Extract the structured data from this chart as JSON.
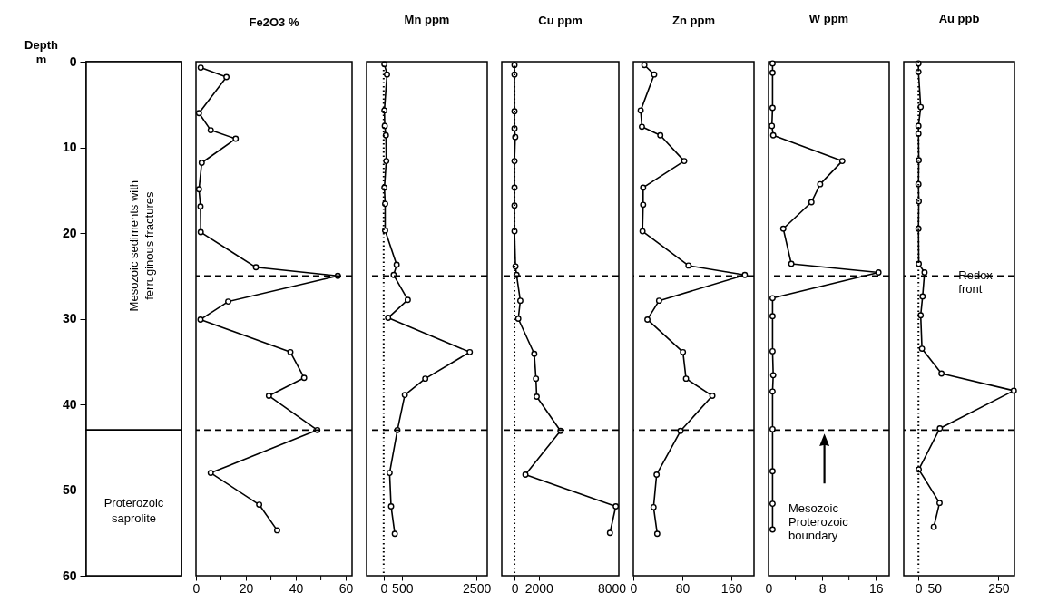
{
  "chart_data": [
    {
      "type": "bar",
      "stacked": true,
      "categories": [
        null
      ],
      "ylabel": "Depth\nm",
      "ylim": [
        60,
        0
      ],
      "yticks": [
        0,
        10,
        20,
        30,
        40,
        50,
        60
      ],
      "tick_labels": "y",
      "series": [
        {
          "name": "Mesozoic sediments with\nferruginous fractures",
          "color": "#ffffff",
          "values": [
            43
          ]
        },
        {
          "name": "Proterozoic\nsaprolite",
          "color": "#ffffff",
          "values": [
            17
          ]
        }
      ]
    },
    {
      "type": "line",
      "title": "Fe2O3 %",
      "xlim": [
        0,
        62.5
      ],
      "xticks": [
        0,
        {
          "value": 10,
          "label": null
        },
        20,
        {
          "value": 30,
          "label": null
        },
        40,
        {
          "value": 50,
          "label": null
        },
        60
      ],
      "ylim": [
        60,
        0
      ],
      "tick_labels": "x",
      "marker": "circle",
      "series": [
        {
          "color": "#000000",
          "x": [
            1.9,
            12.2,
            1.2,
            5.9,
            15.9,
            2.3,
            1.2,
            1.8,
            1.9,
            24,
            56.8,
            12.9,
            1.8,
            37.8,
            43.3,
            29.2,
            48.6,
            5.9,
            25.3,
            32.5
          ],
          "values": [
            0.7,
            1.8,
            6,
            8,
            9,
            11.8,
            14.9,
            16.9,
            19.9,
            24,
            25,
            28,
            30.1,
            33.9,
            36.9,
            39,
            43,
            48,
            51.7,
            54.7
          ]
        }
      ],
      "ref_lines": [
        {
          "axis": "y",
          "value": 25,
          "line_style": "dashed"
        },
        {
          "axis": "y",
          "value": 43,
          "line_style": "dashed"
        }
      ]
    },
    {
      "type": "line",
      "title": "Mn ppm",
      "xlim": [
        -460,
        2790
      ],
      "xticks": [
        0,
        500,
        2500
      ],
      "ylim": [
        60,
        0
      ],
      "tick_labels": "x",
      "marker": "circle",
      "series": [
        {
          "color": "#000000",
          "x": [
            20,
            90,
            20,
            30,
            60,
            70,
            20,
            40,
            40,
            350,
            270,
            650,
            120,
            2320,
            1120,
            570,
            370,
            160,
            200,
            300
          ],
          "values": [
            0.3,
            1.5,
            5.7,
            7.5,
            8.6,
            11.6,
            14.7,
            16.6,
            19.7,
            23.7,
            24.9,
            27.8,
            29.9,
            33.9,
            37,
            38.9,
            43,
            48,
            51.9,
            55.1
          ]
        }
      ],
      "ref_lines": [
        {
          "axis": "y",
          "value": 25,
          "line_style": "dashed"
        },
        {
          "axis": "y",
          "value": 43,
          "line_style": "dashed"
        },
        {
          "axis": "x",
          "value": 0,
          "line_style": "dotted"
        }
      ]
    },
    {
      "type": "line",
      "title": "Cu ppm",
      "xlim": [
        -1050,
        8600
      ],
      "xticks": [
        0,
        2000,
        8000
      ],
      "ylim": [
        60,
        0
      ],
      "tick_labels": "x",
      "marker": "circle",
      "series": [
        {
          "color": "#000000",
          "x": [
            0,
            0,
            0,
            0,
            60,
            0,
            0,
            0,
            0,
            80,
            170,
            480,
            310,
            1630,
            1770,
            1830,
            3790,
            900,
            8350,
            7870
          ],
          "values": [
            0.4,
            1.5,
            5.8,
            7.8,
            8.8,
            11.6,
            14.7,
            16.8,
            19.8,
            23.9,
            24.9,
            27.9,
            30,
            34.1,
            37,
            39.1,
            43.1,
            48.2,
            51.9,
            55
          ]
        }
      ],
      "ref_lines": [
        {
          "axis": "y",
          "value": 25,
          "line_style": "dashed"
        },
        {
          "axis": "y",
          "value": 43,
          "line_style": "dashed"
        },
        {
          "axis": "x",
          "value": 0,
          "line_style": "dotted"
        }
      ]
    },
    {
      "type": "line",
      "title": "Zn ppm",
      "xlim": [
        0,
        197
      ],
      "xticks": [
        0,
        80,
        160
      ],
      "ylim": [
        60,
        0
      ],
      "tick_labels": "x",
      "marker": "circle",
      "series": [
        {
          "color": "#000000",
          "x": [
            18,
            34,
            12,
            14,
            44,
            83,
            16,
            16,
            15,
            90,
            182,
            42,
            23,
            81,
            86,
            129,
            77,
            38,
            33,
            39
          ],
          "values": [
            0.4,
            1.5,
            5.7,
            7.6,
            8.6,
            11.6,
            14.7,
            16.7,
            19.8,
            23.8,
            24.9,
            27.9,
            30.1,
            33.9,
            37,
            39,
            43.1,
            48.2,
            52,
            55.1
          ]
        }
      ],
      "ref_lines": [
        {
          "axis": "y",
          "value": 25,
          "line_style": "dashed"
        },
        {
          "axis": "y",
          "value": 43,
          "line_style": "dashed"
        }
      ]
    },
    {
      "type": "line",
      "title": "W ppm",
      "xlim": [
        0,
        18
      ],
      "xticks": [
        0,
        {
          "value": 4,
          "label": null
        },
        8,
        {
          "value": 12,
          "label": null
        },
        16
      ],
      "ylim": [
        60,
        0
      ],
      "tick_labels": "x",
      "marker": "circle",
      "series": [
        {
          "color": "#000000",
          "x": [
            0.6,
            0.6,
            0.6,
            0.5,
            0.7,
            11,
            7.7,
            6.4,
            2.2,
            3.4,
            16.4,
            0.6,
            0.6,
            0.6,
            0.7,
            0.6,
            0.6,
            0.6,
            0.6,
            0.6
          ],
          "values": [
            0.2,
            1.3,
            5.4,
            7.5,
            8.6,
            11.6,
            14.3,
            16.4,
            19.5,
            23.6,
            24.6,
            27.6,
            29.7,
            33.8,
            36.6,
            38.5,
            42.9,
            47.8,
            51.6,
            54.6
          ]
        }
      ],
      "ref_lines": [
        {
          "axis": "y",
          "value": 25,
          "line_style": "dashed"
        },
        {
          "axis": "y",
          "value": 43,
          "line_style": "dashed"
        }
      ],
      "annotations": [
        "Mesozoic\nProterozoic\nboundary"
      ]
    },
    {
      "type": "line",
      "title": "Au ppb",
      "xlim": [
        -46,
        300
      ],
      "xticks": [
        0,
        50,
        250
      ],
      "ylim": [
        60,
        0
      ],
      "tick_labels": "x",
      "marker": "circle",
      "series": [
        {
          "color": "#000000",
          "x": [
            0,
            0,
            7,
            0,
            0,
            1,
            0,
            1,
            0,
            1,
            19,
            13,
            7,
            11,
            72,
            298,
            67,
            1,
            66,
            48
          ],
          "values": [
            0.2,
            1.2,
            5.3,
            7.5,
            8.4,
            11.5,
            14.3,
            16.3,
            19.5,
            23.6,
            24.6,
            27.4,
            29.6,
            33.5,
            36.4,
            38.4,
            42.8,
            47.6,
            51.5,
            54.3
          ]
        }
      ],
      "ref_lines": [
        {
          "axis": "y",
          "value": 25,
          "line_style": "dashed"
        },
        {
          "axis": "y",
          "value": 43,
          "line_style": "dashed"
        },
        {
          "axis": "x",
          "value": 0,
          "line_style": "dotted"
        }
      ],
      "annotations": [
        {
          "text": "Redox\nfront",
          "x": 125,
          "y": 25
        }
      ]
    }
  ]
}
